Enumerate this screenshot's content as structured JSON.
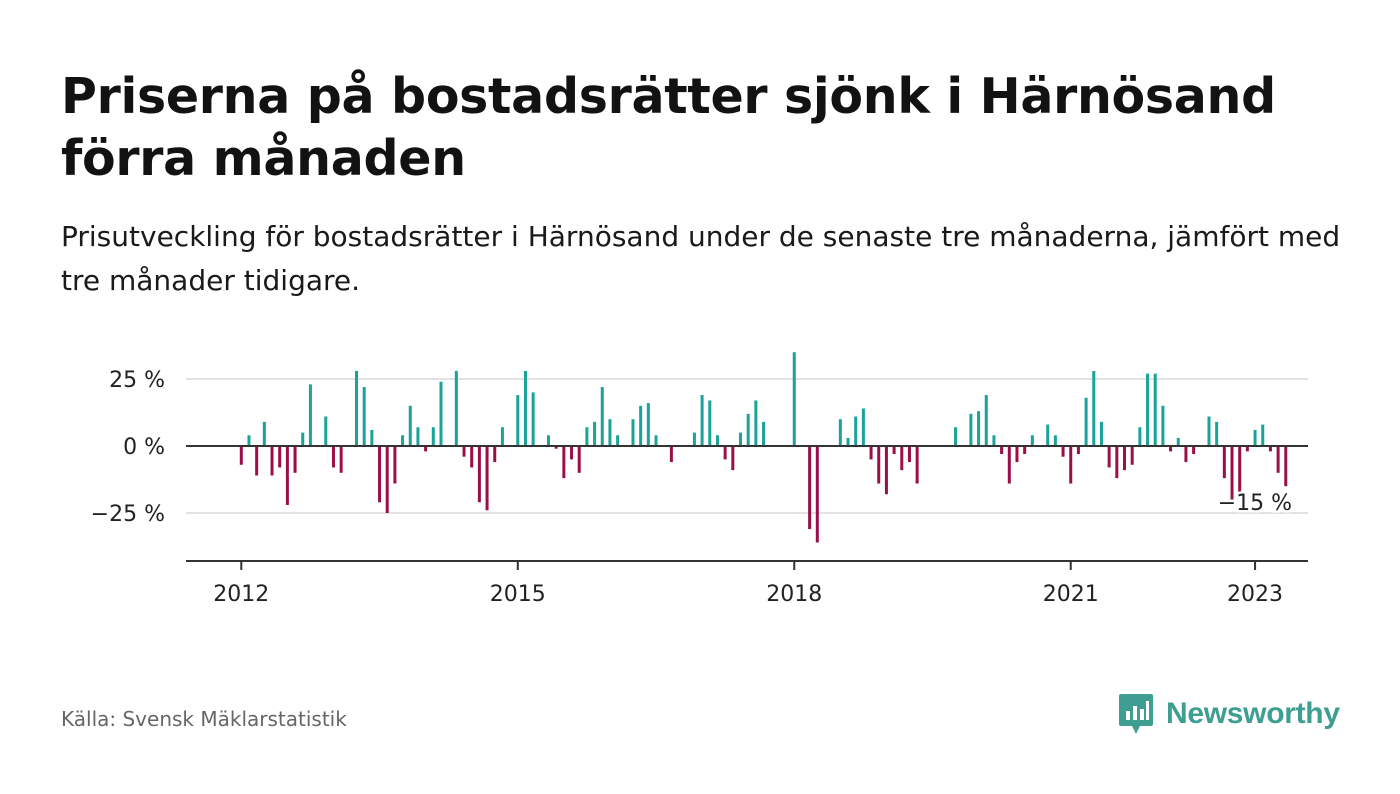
{
  "title": "Priserna på bostadsrätter sjönk i Härnösand förra månaden",
  "subtitle": "Prisutveckling för bostadsrätter i Härnösand under de senaste tre månaderna, jämfört med tre månader tidigare.",
  "source": "Källa: Svensk Mäklarstatistik",
  "brand": {
    "name": "Newsworthy",
    "icon": "newsworthy-logo-icon",
    "color": "#3d9e91"
  },
  "chart_data": {
    "type": "bar",
    "unit": "%",
    "colors": {
      "positive": "#1aa398",
      "negative": "#9b0f48",
      "grid": "#d9d9d9",
      "axis": "#333333"
    },
    "ylim": [
      -40,
      40
    ],
    "yticks": [
      {
        "value": 25,
        "label": "25 %"
      },
      {
        "value": 0,
        "label": "0 %"
      },
      {
        "value": -25,
        "label": "−25 %"
      }
    ],
    "xticks": [
      {
        "year": 2012,
        "label": "2012"
      },
      {
        "year": 2015,
        "label": "2015"
      },
      {
        "year": 2018,
        "label": "2018"
      },
      {
        "year": 2021,
        "label": "2021"
      },
      {
        "year": 2023,
        "label": "2023"
      }
    ],
    "x_start": "2012-01",
    "annotation": {
      "text": "−15 %",
      "month": "2023-01"
    },
    "grid": true,
    "series": [
      {
        "values": [
          -7,
          4,
          -11,
          9,
          -11,
          -8,
          -22,
          -10,
          5,
          23,
          null,
          11,
          -8,
          -10,
          null,
          28,
          22,
          6,
          -21,
          -25,
          -14,
          4,
          15,
          7,
          -2,
          7,
          24,
          null,
          28,
          -4,
          -8,
          -21,
          -24,
          -6,
          7,
          null,
          19,
          28,
          20,
          null,
          4,
          -1,
          -12,
          -5,
          -10,
          7,
          9,
          22,
          10,
          4,
          null,
          10,
          15,
          16,
          4,
          null,
          -6,
          null,
          null,
          5,
          19,
          17,
          4,
          -5,
          -9,
          5,
          12,
          17,
          9,
          null,
          null,
          null,
          35,
          null,
          -31,
          -36,
          null,
          null,
          10,
          3,
          11,
          14,
          -5,
          -14,
          -18,
          -3,
          -9,
          -6,
          -14,
          null,
          null,
          null,
          null,
          7,
          null,
          12,
          13,
          19,
          4,
          -3,
          -14,
          -6,
          -3,
          4,
          null,
          8,
          4,
          -4,
          -14,
          -3,
          18,
          28,
          9,
          -8,
          -12,
          -9,
          -7,
          7,
          27,
          27,
          15,
          -2,
          3,
          -6,
          -3,
          null,
          11,
          9,
          -12,
          -20,
          -18,
          -2,
          6,
          8,
          -2,
          -10,
          -15
        ]
      }
    ]
  }
}
